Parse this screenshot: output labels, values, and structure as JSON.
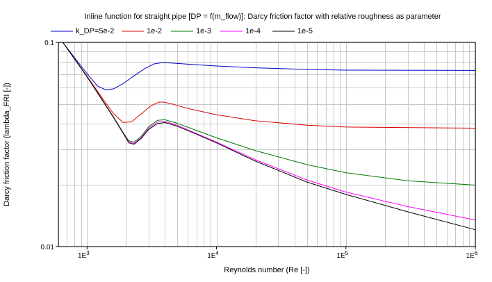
{
  "chart_data": {
    "type": "line",
    "title": "Inline function for straight pipe [DP = f(m_flow)]: Darcy friction factor with relative roughness as parameter",
    "xlabel": "Reynolds number (Re [-])",
    "ylabel": "Darcy friction factor (lambda_FRI [-])",
    "xscale": "log",
    "yscale": "log",
    "xlim": [
      600,
      1000000
    ],
    "ylim": [
      0.01,
      0.1
    ],
    "grid": true,
    "legend_position": "top",
    "x_ticks": [
      {
        "value": 1000,
        "base": "1E",
        "exp": "3"
      },
      {
        "value": 10000,
        "base": "1E",
        "exp": "4"
      },
      {
        "value": 100000,
        "base": "1E",
        "exp": "5"
      },
      {
        "value": 1000000,
        "base": "1E",
        "exp": "6"
      }
    ],
    "y_ticks": [
      {
        "value": 0.1,
        "label": "0.1"
      },
      {
        "value": 0.01,
        "label": "0.01"
      }
    ],
    "series": [
      {
        "name": "k_DP=5e-2",
        "color": "#0000c8",
        "x": [
          650,
          800,
          1000,
          1200,
          1400,
          1600,
          1900,
          2300,
          2800,
          3300,
          3800,
          4500,
          6000,
          10000,
          20000,
          50000,
          100000,
          1000000
        ],
        "y": [
          0.1,
          0.0842,
          0.0703,
          0.0612,
          0.0585,
          0.0592,
          0.0628,
          0.0685,
          0.0745,
          0.0785,
          0.0795,
          0.0792,
          0.0782,
          0.0766,
          0.0751,
          0.0737,
          0.0731,
          0.0729
        ]
      },
      {
        "name": "1e-2",
        "color": "#dc0000",
        "x": [
          650,
          800,
          1000,
          1300,
          1600,
          1900,
          2200,
          2600,
          3100,
          3600,
          3900,
          4500,
          6000,
          10000,
          20000,
          50000,
          100000,
          1000000
        ],
        "y": [
          0.1,
          0.0832,
          0.0683,
          0.0538,
          0.0448,
          0.0405,
          0.0408,
          0.0445,
          0.0488,
          0.051,
          0.051,
          0.05,
          0.0475,
          0.0442,
          0.0413,
          0.0393,
          0.0385,
          0.038
        ]
      },
      {
        "name": "1e-3",
        "color": "#007800",
        "x": [
          650,
          800,
          1000,
          1300,
          1600,
          1900,
          2100,
          2300,
          2600,
          3000,
          3500,
          4000,
          5000,
          7000,
          10000,
          20000,
          50000,
          100000,
          300000,
          1000000
        ],
        "y": [
          0.1,
          0.083,
          0.068,
          0.0528,
          0.0432,
          0.0362,
          0.033,
          0.0325,
          0.0345,
          0.0387,
          0.0415,
          0.0418,
          0.0401,
          0.037,
          0.0341,
          0.0295,
          0.0252,
          0.023,
          0.021,
          0.02
        ]
      },
      {
        "name": "1e-4",
        "color": "#ff00ff",
        "x": [
          650,
          800,
          1000,
          1300,
          1600,
          1900,
          2100,
          2300,
          2600,
          3000,
          3500,
          4000,
          5000,
          7000,
          10000,
          20000,
          50000,
          100000,
          300000,
          1000000
        ],
        "y": [
          0.1,
          0.0829,
          0.0679,
          0.0526,
          0.043,
          0.036,
          0.0326,
          0.032,
          0.034,
          0.038,
          0.0407,
          0.041,
          0.0392,
          0.0358,
          0.0325,
          0.0266,
          0.0212,
          0.0185,
          0.0157,
          0.0135
        ]
      },
      {
        "name": "1e-5",
        "color": "#000000",
        "x": [
          650,
          800,
          1000,
          1300,
          1600,
          1900,
          2100,
          2300,
          2600,
          3000,
          3500,
          4000,
          5000,
          7000,
          10000,
          20000,
          50000,
          100000,
          300000,
          1000000
        ],
        "y": [
          0.1,
          0.0828,
          0.0678,
          0.0525,
          0.0429,
          0.0359,
          0.0322,
          0.0317,
          0.0337,
          0.0375,
          0.04,
          0.0405,
          0.0388,
          0.0355,
          0.0322,
          0.0262,
          0.0207,
          0.018,
          0.0148,
          0.0121
        ]
      }
    ]
  }
}
